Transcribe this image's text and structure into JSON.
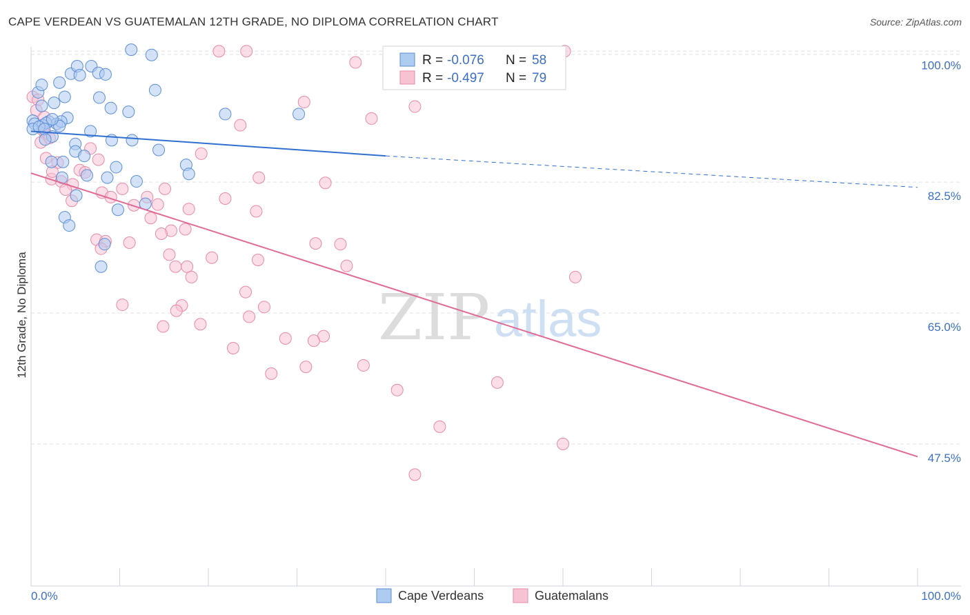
{
  "header": {
    "title": "CAPE VERDEAN VS GUATEMALAN 12TH GRADE, NO DIPLOMA CORRELATION CHART",
    "source": "Source: ZipAtlas.com"
  },
  "legend_box": {
    "rows": [
      {
        "r_label": "R = ",
        "r_value": "-0.076",
        "n_label": "N = ",
        "n_value": "58"
      },
      {
        "r_label": "R = ",
        "r_value": "-0.497",
        "n_label": "N = ",
        "n_value": "79"
      }
    ]
  },
  "watermark": {
    "zip": "ZIP",
    "atlas": "atlas"
  },
  "colors": {
    "blue_fill": "#aecbf0",
    "blue_stroke": "#5b8ed6",
    "blue_line": "#2f6fcf",
    "pink_fill": "#f7c3d3",
    "pink_stroke": "#e889a8",
    "pink_line": "#e06a96",
    "value_text": "#3c6fc5",
    "grid": "#dde3ea"
  },
  "chart_data": {
    "type": "scatter",
    "title": "CAPE VERDEAN VS GUATEMALAN 12TH GRADE, NO DIPLOMA CORRELATION CHART",
    "xlabel": "",
    "ylabel": "12th Grade, No Diploma",
    "xlim": [
      0,
      100
    ],
    "ylim": [
      28.5,
      101.5
    ],
    "x_tick_labels": [
      "0.0%",
      "100.0%"
    ],
    "y_ticks": [
      47.5,
      65.0,
      82.5,
      100.0
    ],
    "y_tick_labels": [
      "47.5%",
      "65.0%",
      "82.5%",
      "100.0%"
    ],
    "grid": true,
    "legend_placement": "bottom",
    "series": [
      {
        "name": "Cape Verdeans",
        "color": "#5b8ed6",
        "r": -0.076,
        "n": 58,
        "trend": {
          "x": [
            0,
            40
          ],
          "y": [
            89.3,
            86.0
          ],
          "dashed_to": [
            100,
            81.8
          ]
        },
        "points": [
          [
            0.8,
            94.5
          ],
          [
            1.2,
            95.5
          ],
          [
            3.2,
            95.8
          ],
          [
            4.5,
            97.0
          ],
          [
            5.2,
            98.0
          ],
          [
            6.8,
            98.0
          ],
          [
            5.5,
            96.8
          ],
          [
            7.6,
            97.1
          ],
          [
            8.4,
            96.9
          ],
          [
            11.3,
            100.2
          ],
          [
            13.6,
            99.5
          ],
          [
            14,
            94.8
          ],
          [
            3.8,
            93.9
          ],
          [
            7.7,
            93.8
          ],
          [
            1.2,
            92.7
          ],
          [
            2.6,
            93.1
          ],
          [
            9,
            92.4
          ],
          [
            11,
            91.9
          ],
          [
            4.1,
            91.1
          ],
          [
            0.2,
            90.7
          ],
          [
            0.4,
            90.3
          ],
          [
            2,
            90.6
          ],
          [
            2.9,
            90.3
          ],
          [
            3.4,
            90.6
          ],
          [
            3.2,
            90.0
          ],
          [
            1.3,
            90.1
          ],
          [
            1.7,
            90.4
          ],
          [
            2.4,
            90.9
          ],
          [
            0.2,
            89.6
          ],
          [
            0.9,
            89.9
          ],
          [
            1.5,
            89.6
          ],
          [
            6.7,
            89.3
          ],
          [
            2.4,
            88.6
          ],
          [
            1.6,
            88.2
          ],
          [
            9.1,
            88.1
          ],
          [
            11.4,
            88.1
          ],
          [
            5,
            87.6
          ],
          [
            14.4,
            86.8
          ],
          [
            5,
            86.6
          ],
          [
            6,
            86.0
          ],
          [
            3.6,
            85.2
          ],
          [
            2.3,
            85.2
          ],
          [
            9.6,
            84.5
          ],
          [
            17.5,
            84.8
          ],
          [
            6.3,
            83.4
          ],
          [
            8.6,
            83.1
          ],
          [
            11.9,
            82.6
          ],
          [
            17.8,
            83.6
          ],
          [
            3.5,
            83.1
          ],
          [
            5.1,
            80.7
          ],
          [
            12.9,
            79.6
          ],
          [
            9.8,
            78.8
          ],
          [
            3.8,
            77.8
          ],
          [
            4.3,
            76.7
          ],
          [
            8.3,
            74.2
          ],
          [
            7.9,
            71.2
          ],
          [
            21.9,
            91.6
          ],
          [
            30.2,
            91.6
          ]
        ]
      },
      {
        "name": "Guatemalans",
        "color": "#e889a8",
        "r": -0.497,
        "n": 79,
        "trend": {
          "x": [
            0,
            100
          ],
          "y": [
            83.7,
            45.8
          ]
        },
        "points": [
          [
            21.2,
            100.0
          ],
          [
            24.3,
            100.0
          ],
          [
            60.2,
            100.0
          ],
          [
            36.6,
            98.5
          ],
          [
            0.2,
            93.9
          ],
          [
            0.8,
            93.5
          ],
          [
            30.8,
            93.2
          ],
          [
            43.3,
            92.6
          ],
          [
            0.6,
            92.1
          ],
          [
            1.5,
            91.2
          ],
          [
            38.4,
            91.0
          ],
          [
            23.6,
            90.1
          ],
          [
            1.6,
            89.0
          ],
          [
            1.1,
            87.8
          ],
          [
            2.1,
            88.4
          ],
          [
            19.2,
            86.3
          ],
          [
            1.7,
            85.7
          ],
          [
            3,
            85.1
          ],
          [
            7.6,
            85.5
          ],
          [
            2.3,
            82.9
          ],
          [
            2.4,
            83.9
          ],
          [
            5.5,
            84.1
          ],
          [
            3.4,
            82.6
          ],
          [
            4.7,
            82.2
          ],
          [
            6.1,
            83.8
          ],
          [
            25.7,
            83.1
          ],
          [
            33.2,
            82.4
          ],
          [
            3.9,
            81.5
          ],
          [
            8,
            81.1
          ],
          [
            10.3,
            81.6
          ],
          [
            15.1,
            81.6
          ],
          [
            4.6,
            80.0
          ],
          [
            11.6,
            79.4
          ],
          [
            14.3,
            79.5
          ],
          [
            9,
            80.5
          ],
          [
            13.1,
            80.5
          ],
          [
            17.8,
            78.9
          ],
          [
            21.9,
            80.3
          ],
          [
            13.5,
            77.7
          ],
          [
            15.8,
            76.0
          ],
          [
            25.4,
            78.6
          ],
          [
            7.4,
            74.8
          ],
          [
            8.4,
            74.6
          ],
          [
            11.1,
            74.4
          ],
          [
            14.7,
            75.6
          ],
          [
            17.4,
            76.2
          ],
          [
            7.9,
            73.6
          ],
          [
            15.6,
            72.8
          ],
          [
            20.4,
            72.4
          ],
          [
            34.9,
            74.2
          ],
          [
            25.6,
            72.1
          ],
          [
            16.3,
            71.2
          ],
          [
            17.6,
            71.2
          ],
          [
            18.1,
            69.8
          ],
          [
            24.2,
            67.8
          ],
          [
            35.6,
            71.3
          ],
          [
            61.4,
            69.8
          ],
          [
            10.3,
            66.1
          ],
          [
            17,
            66.0
          ],
          [
            16.4,
            65.3
          ],
          [
            14.9,
            63.2
          ],
          [
            19.1,
            63.5
          ],
          [
            24.6,
            64.5
          ],
          [
            26.3,
            65.8
          ],
          [
            33.0,
            61.9
          ],
          [
            31.9,
            61.3
          ],
          [
            28.7,
            61.6
          ],
          [
            22.8,
            60.3
          ],
          [
            37.5,
            58.0
          ],
          [
            27.1,
            56.9
          ],
          [
            31,
            57.8
          ],
          [
            41.3,
            54.7
          ],
          [
            52.6,
            55.7
          ],
          [
            46.1,
            49.8
          ],
          [
            60.0,
            47.5
          ],
          [
            43.3,
            43.4
          ],
          [
            1.3,
            89.5
          ],
          [
            6.7,
            87.0
          ],
          [
            32.1,
            74.3
          ]
        ]
      }
    ]
  },
  "bottom_legend": {
    "items": [
      {
        "label": "Cape Verdeans"
      },
      {
        "label": "Guatemalans"
      }
    ]
  }
}
